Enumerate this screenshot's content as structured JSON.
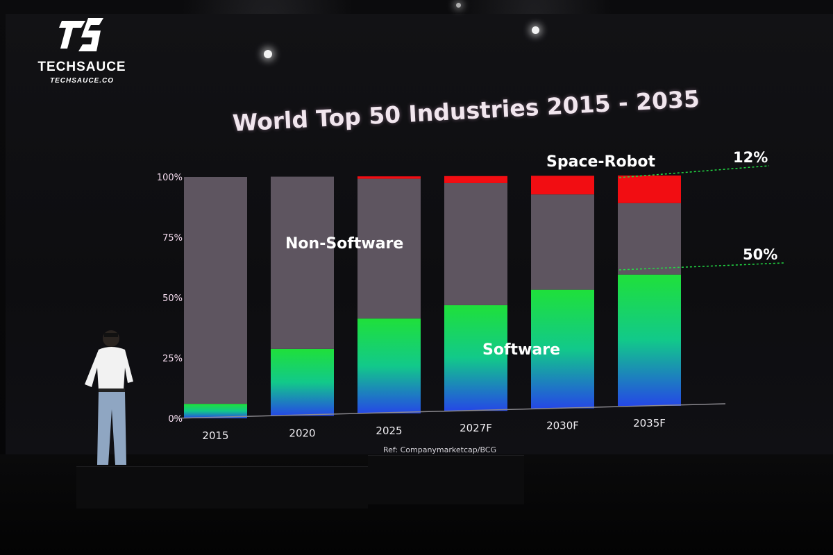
{
  "brand": {
    "name": "TECHSAUCE",
    "url": "TECHSAUCE.CO"
  },
  "chart_data": {
    "type": "bar",
    "stacked": true,
    "title": "World Top 50 Industries 2015 - 2035",
    "categories": [
      "2015",
      "2020",
      "2025",
      "2027F",
      "2030F",
      "2035F"
    ],
    "y_ticks": [
      "0%",
      "25%",
      "50%",
      "75%",
      "100%"
    ],
    "ylim": [
      0,
      100
    ],
    "series": [
      {
        "name": "Software",
        "values": [
          6,
          28,
          40,
          45,
          51,
          57
        ],
        "color": "#20d840"
      },
      {
        "name": "Non-Software",
        "values": [
          94,
          72,
          59,
          52,
          41,
          31
        ],
        "color": "#5e5560"
      },
      {
        "name": "Space-Robot",
        "values": [
          0,
          0,
          1,
          3,
          8,
          12
        ],
        "color": "#f20d12"
      }
    ],
    "segment_labels": {
      "non_software": "Non-Software",
      "software": "Software",
      "space_robot": "Space-Robot"
    },
    "annotations": [
      "12%",
      "50%"
    ],
    "source": "Ref: Companymarketcap/BCG"
  }
}
